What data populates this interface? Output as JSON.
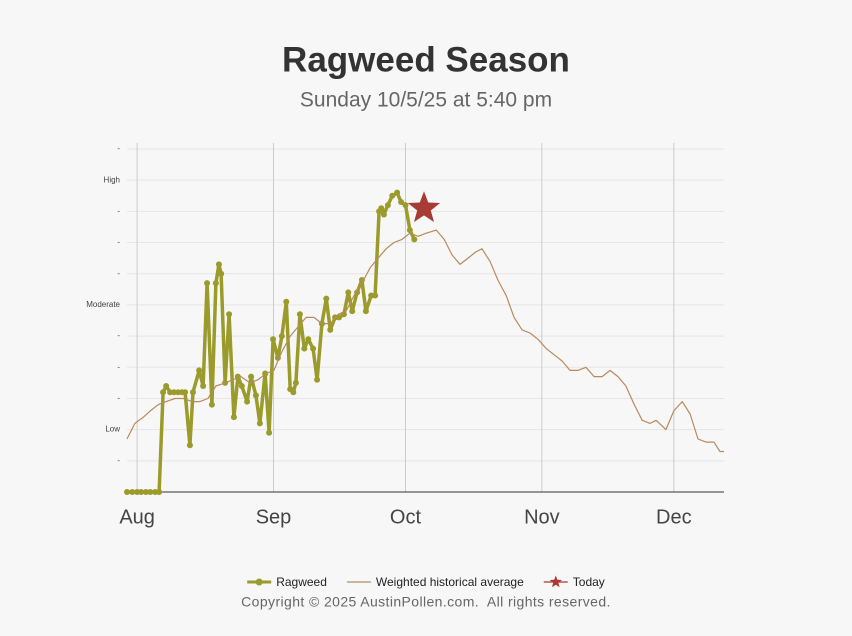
{
  "chart_data": {
    "type": "line",
    "title": "Ragweed Season",
    "subtitle": "Sunday 10/5/25 at 5:40 pm",
    "xlim": [
      -2.3,
      133.4
    ],
    "xticks": [
      {
        "value": 0,
        "label": "Aug"
      },
      {
        "value": 31,
        "label": "Sep"
      },
      {
        "value": 61,
        "label": "Oct"
      },
      {
        "value": 92,
        "label": "Nov"
      },
      {
        "value": 122,
        "label": "Dec"
      }
    ],
    "ylim": [
      0,
      11
    ],
    "yticks": [
      {
        "value": 1,
        "label": "-"
      },
      {
        "value": 2,
        "label": "Low"
      },
      {
        "value": 3,
        "label": "-"
      },
      {
        "value": 4,
        "label": "-"
      },
      {
        "value": 5,
        "label": "-"
      },
      {
        "value": 6,
        "label": "Moderate"
      },
      {
        "value": 7,
        "label": "-"
      },
      {
        "value": 8,
        "label": "-"
      },
      {
        "value": 9,
        "label": "-"
      },
      {
        "value": 10,
        "label": "High"
      },
      {
        "value": 11,
        "label": "-"
      }
    ],
    "grid": true,
    "series": [
      {
        "name": "Ragweed",
        "color": "#9a9b2b",
        "marker": "circle",
        "x": [
          -2.3,
          -1.1,
          0,
          0.9,
          2.0,
          3.0,
          4.1,
          5.0,
          5.9,
          6.6,
          7.5,
          8.4,
          9.3,
          10.2,
          10.9,
          12.0,
          12.7,
          14.1,
          15.0,
          15.9,
          17.0,
          17.9,
          18.6,
          19.1,
          20.0,
          20.9,
          22.0,
          22.9,
          23.8,
          25.0,
          25.9,
          27.0,
          27.9,
          29.1,
          30.0,
          30.9,
          32.0,
          32.9,
          33.9,
          34.8,
          35.5,
          36.1,
          37.0,
          38.0,
          38.9,
          40.0,
          40.9,
          42.0,
          43.0,
          43.9,
          45.0,
          45.9,
          47.0,
          48.0,
          48.9,
          50.0,
          51.1,
          52.0,
          53.2,
          54.1,
          55.0,
          55.5,
          56.1,
          57.0,
          58.0,
          59.1,
          60.0,
          61.0,
          62.0,
          63.0
        ],
        "values": [
          0,
          0,
          0,
          0,
          0,
          0,
          0,
          0,
          3.2,
          3.4,
          3.2,
          3.2,
          3.2,
          3.2,
          3.2,
          1.5,
          3.2,
          3.9,
          3.4,
          6.7,
          2.8,
          6.7,
          7.3,
          7.0,
          3.5,
          5.7,
          2.4,
          3.7,
          3.4,
          2.9,
          3.7,
          3.1,
          2.2,
          3.8,
          1.9,
          4.9,
          4.3,
          5.0,
          6.1,
          3.3,
          3.2,
          3.5,
          5.7,
          4.6,
          4.9,
          4.6,
          3.6,
          5.4,
          6.2,
          5.2,
          5.6,
          5.6,
          5.7,
          6.4,
          5.8,
          6.4,
          6.8,
          5.8,
          6.3,
          6.3,
          9.0,
          9.1,
          8.9,
          9.2,
          9.5,
          9.6,
          9.3,
          9.2,
          8.4,
          8.1
        ]
      },
      {
        "name": "Weighted historical average",
        "color": "#b98a5c",
        "marker": "none",
        "x": [
          -2.3,
          -0.5,
          1.4,
          3.0,
          4.8,
          6.6,
          8.6,
          10.5,
          12.5,
          14.3,
          16.1,
          17.9,
          20.0,
          21.8,
          23.6,
          25.7,
          27.5,
          29.3,
          31.1,
          32.9,
          34.8,
          36.6,
          38.4,
          40.2,
          42.0,
          43.9,
          45.7,
          47.5,
          49.3,
          51.1,
          53.0,
          54.8,
          56.6,
          58.4,
          60.2,
          62.0,
          63.9,
          65.7,
          68.0,
          69.8,
          71.6,
          73.4,
          75.2,
          77.0,
          78.4,
          80.2,
          82.0,
          83.9,
          85.7,
          87.5,
          89.3,
          91.1,
          93.0,
          94.8,
          96.6,
          98.4,
          100.2,
          102.0,
          103.9,
          105.7,
          107.5,
          109.3,
          111.1,
          113.0,
          114.8,
          116.6,
          118.0,
          120.2,
          122.0,
          123.9,
          125.7,
          127.5,
          129.3,
          131.1,
          132.5,
          133.4
        ],
        "values": [
          1.7,
          2.2,
          2.4,
          2.6,
          2.8,
          2.9,
          3.0,
          3.0,
          2.9,
          2.9,
          3.0,
          3.4,
          3.5,
          3.6,
          3.7,
          3.5,
          3.6,
          3.8,
          3.9,
          4.5,
          5.0,
          5.3,
          5.6,
          5.6,
          5.4,
          5.4,
          5.7,
          5.8,
          6.3,
          6.7,
          7.2,
          7.5,
          7.8,
          8.0,
          8.1,
          8.3,
          8.2,
          8.3,
          8.4,
          8.1,
          7.6,
          7.3,
          7.5,
          7.7,
          7.8,
          7.4,
          6.8,
          6.3,
          5.6,
          5.2,
          5.1,
          4.9,
          4.6,
          4.4,
          4.2,
          3.9,
          3.9,
          4.0,
          3.7,
          3.7,
          3.9,
          3.7,
          3.4,
          2.8,
          2.3,
          2.2,
          2.3,
          2.0,
          2.6,
          2.9,
          2.5,
          1.7,
          1.6,
          1.6,
          1.3,
          1.3
        ]
      },
      {
        "name": "Today",
        "color": "#a83b33",
        "marker": "star",
        "x": [
          65.2
        ],
        "values": [
          9.1
        ]
      }
    ]
  },
  "footer": "Copyright © 2025 AustinPollen.com.  All rights reserved."
}
